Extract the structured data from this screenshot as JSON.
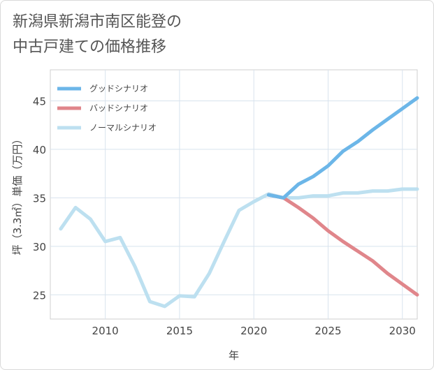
{
  "title_line1": "新潟県新潟市南区能登の",
  "title_line2": "中古戸建ての価格推移",
  "chart_data": {
    "type": "line",
    "xlabel": "年",
    "ylabel": "坪（3.3㎡）単価（万円）",
    "xlim": [
      2006.3,
      2031
    ],
    "ylim": [
      22.5,
      48.2
    ],
    "xticks": [
      2010,
      2015,
      2020,
      2025,
      2030
    ],
    "yticks": [
      25,
      30,
      35,
      40,
      45
    ],
    "grid": true,
    "legend_position": "top-left",
    "series": [
      {
        "name": "グッドシナリオ",
        "color": "#6cb6e8",
        "x": [
          2021,
          2022,
          2023,
          2024,
          2025,
          2026,
          2027,
          2028,
          2029,
          2030,
          2031
        ],
        "y": [
          35.3,
          35.0,
          36.4,
          37.2,
          38.3,
          39.8,
          40.8,
          42.0,
          43.1,
          44.2,
          45.3
        ]
      },
      {
        "name": "バッドシナリオ",
        "color": "#e0868b",
        "x": [
          2021,
          2022,
          2023,
          2024,
          2025,
          2026,
          2027,
          2028,
          2029,
          2030,
          2031
        ],
        "y": [
          35.3,
          35.0,
          34.0,
          32.9,
          31.6,
          30.5,
          29.5,
          28.5,
          27.2,
          26.1,
          25.0
        ]
      },
      {
        "name": "ノーマルシナリオ",
        "color": "#bde0f0",
        "x": [
          2007,
          2008,
          2009,
          2010,
          2011,
          2012,
          2013,
          2014,
          2015,
          2016,
          2017,
          2018,
          2019,
          2020,
          2021,
          2022,
          2023,
          2024,
          2025,
          2026,
          2027,
          2028,
          2029,
          2030,
          2031
        ],
        "y": [
          31.8,
          34.0,
          32.8,
          30.5,
          30.9,
          27.9,
          24.3,
          23.8,
          24.9,
          24.8,
          27.2,
          30.5,
          33.7,
          34.6,
          35.4,
          35.0,
          35.0,
          35.2,
          35.2,
          35.5,
          35.5,
          35.7,
          35.7,
          35.9,
          35.9
        ]
      }
    ]
  }
}
